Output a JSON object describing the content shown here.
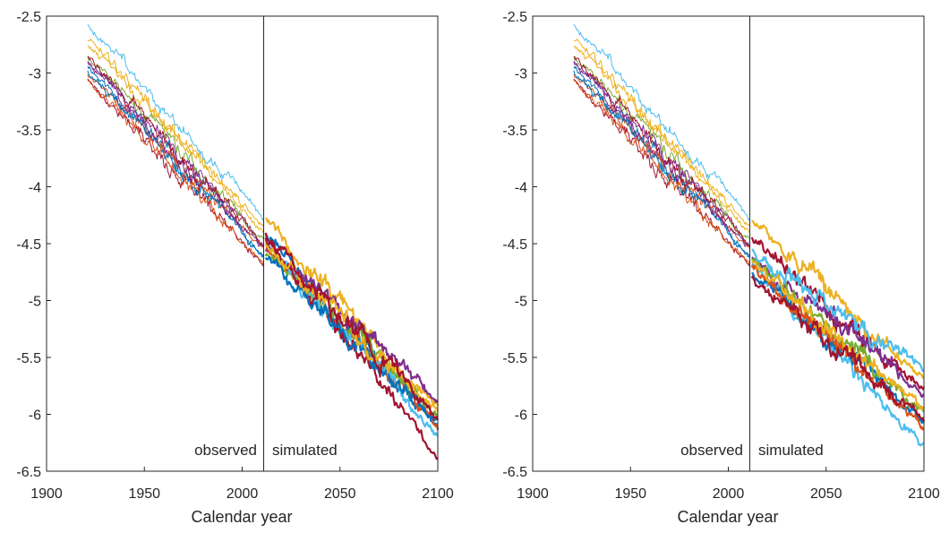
{
  "figure": {
    "background": "#ffffff"
  },
  "chart_data": [
    {
      "type": "line",
      "xlabel": "Calendar year",
      "ylabel": "",
      "xlim": [
        1900,
        2100
      ],
      "ylim": [
        -6.5,
        -2.5
      ],
      "xticks": [
        "1900",
        "1950",
        "2000",
        "2050",
        "2100"
      ],
      "yticks": [
        "-2.5",
        "-3",
        "-3.5",
        "-4",
        "-4.5",
        "-5",
        "-5.5",
        "-6",
        "-6.5"
      ],
      "divider_x": 2011,
      "annotations": {
        "left": "observed",
        "right": "simulated"
      },
      "grid": false,
      "observed": {
        "x_range": [
          1921,
          2011
        ],
        "description": "thin lines, one per cohort",
        "series": [
          {
            "color": "#0072bd",
            "start": -2.93,
            "end": -4.62,
            "seed": 11
          },
          {
            "color": "#d95319",
            "start": -3.0,
            "end": -4.55,
            "seed": 12
          },
          {
            "color": "#edb120",
            "start": -2.75,
            "end": -4.35,
            "seed": 13
          },
          {
            "color": "#7e2f8e",
            "start": -2.9,
            "end": -4.5,
            "seed": 14
          },
          {
            "color": "#77ac30",
            "start": -2.85,
            "end": -4.45,
            "seed": 15
          },
          {
            "color": "#4dbeee",
            "start": -2.57,
            "end": -4.25,
            "seed": 16
          },
          {
            "color": "#a2142f",
            "start": -3.05,
            "end": -4.7,
            "seed": 17
          },
          {
            "color": "#0072bd",
            "start": -2.98,
            "end": -4.6,
            "seed": 18
          },
          {
            "color": "#d95319",
            "start": -3.05,
            "end": -4.68,
            "seed": 19
          },
          {
            "color": "#edb120",
            "start": -2.7,
            "end": -4.4,
            "seed": 20
          },
          {
            "color": "#7e2f8e",
            "start": -2.88,
            "end": -4.55,
            "seed": 21
          },
          {
            "color": "#a2142f",
            "start": -2.85,
            "end": -4.5,
            "seed": 22
          }
        ]
      },
      "simulated": {
        "x_range": [
          2012,
          2100
        ],
        "description": "thick lines, one per simulation path",
        "series": [
          {
            "color": "#0072bd",
            "start": -4.4,
            "end": -6.15,
            "seed": 31
          },
          {
            "color": "#d95319",
            "start": -4.55,
            "end": -6.1,
            "seed": 32
          },
          {
            "color": "#edb120",
            "start": -4.27,
            "end": -5.95,
            "seed": 33
          },
          {
            "color": "#7e2f8e",
            "start": -4.5,
            "end": -5.88,
            "seed": 34
          },
          {
            "color": "#77ac30",
            "start": -4.6,
            "end": -6.0,
            "seed": 35
          },
          {
            "color": "#4dbeee",
            "start": -4.45,
            "end": -6.2,
            "seed": 36
          },
          {
            "color": "#a2142f",
            "start": -4.4,
            "end": -6.38,
            "seed": 37
          },
          {
            "color": "#0072bd",
            "start": -4.62,
            "end": -6.08,
            "seed": 38
          },
          {
            "color": "#edb120",
            "start": -4.5,
            "end": -5.98,
            "seed": 39
          },
          {
            "color": "#a2142f",
            "start": -4.45,
            "end": -6.03,
            "seed": 40
          }
        ]
      }
    },
    {
      "type": "line",
      "xlabel": "Calendar year",
      "ylabel": "",
      "xlim": [
        1900,
        2100
      ],
      "ylim": [
        -6.5,
        -2.5
      ],
      "xticks": [
        "1900",
        "1950",
        "2000",
        "2050",
        "2100"
      ],
      "yticks": [
        "-2.5",
        "-3",
        "-3.5",
        "-4",
        "-4.5",
        "-5",
        "-5.5",
        "-6",
        "-6.5"
      ],
      "divider_x": 2011,
      "annotations": {
        "left": "observed",
        "right": "simulated"
      },
      "grid": false,
      "observed": {
        "x_range": [
          1921,
          2011
        ],
        "description": "thin lines, one per cohort",
        "series": [
          {
            "color": "#0072bd",
            "start": -2.93,
            "end": -4.62,
            "seed": 11
          },
          {
            "color": "#d95319",
            "start": -3.0,
            "end": -4.55,
            "seed": 12
          },
          {
            "color": "#edb120",
            "start": -2.75,
            "end": -4.35,
            "seed": 13
          },
          {
            "color": "#7e2f8e",
            "start": -2.9,
            "end": -4.5,
            "seed": 14
          },
          {
            "color": "#77ac30",
            "start": -2.85,
            "end": -4.45,
            "seed": 15
          },
          {
            "color": "#4dbeee",
            "start": -2.57,
            "end": -4.25,
            "seed": 16
          },
          {
            "color": "#a2142f",
            "start": -3.05,
            "end": -4.7,
            "seed": 17
          },
          {
            "color": "#0072bd",
            "start": -2.98,
            "end": -4.6,
            "seed": 18
          },
          {
            "color": "#d95319",
            "start": -3.05,
            "end": -4.68,
            "seed": 19
          },
          {
            "color": "#edb120",
            "start": -2.7,
            "end": -4.4,
            "seed": 20
          },
          {
            "color": "#7e2f8e",
            "start": -2.88,
            "end": -4.55,
            "seed": 21
          },
          {
            "color": "#a2142f",
            "start": -2.85,
            "end": -4.5,
            "seed": 22
          }
        ]
      },
      "simulated": {
        "x_range": [
          2012,
          2100
        ],
        "description": "thick lines, one per simulation path",
        "series": [
          {
            "color": "#edb120",
            "start": -4.3,
            "end": -5.7,
            "seed": 51
          },
          {
            "color": "#a2142f",
            "start": -4.45,
            "end": -5.78,
            "seed": 52
          },
          {
            "color": "#7e2f8e",
            "start": -4.6,
            "end": -5.82,
            "seed": 53
          },
          {
            "color": "#4dbeee",
            "start": -4.68,
            "end": -6.28,
            "seed": 54
          },
          {
            "color": "#0072bd",
            "start": -4.75,
            "end": -6.05,
            "seed": 55
          },
          {
            "color": "#77ac30",
            "start": -4.62,
            "end": -5.98,
            "seed": 56
          },
          {
            "color": "#d95319",
            "start": -4.7,
            "end": -6.15,
            "seed": 57
          },
          {
            "color": "#4dbeee",
            "start": -4.55,
            "end": -5.62,
            "seed": 58
          },
          {
            "color": "#edb120",
            "start": -4.65,
            "end": -5.95,
            "seed": 59
          },
          {
            "color": "#a2142f",
            "start": -4.8,
            "end": -6.05,
            "seed": 60
          }
        ]
      }
    }
  ]
}
